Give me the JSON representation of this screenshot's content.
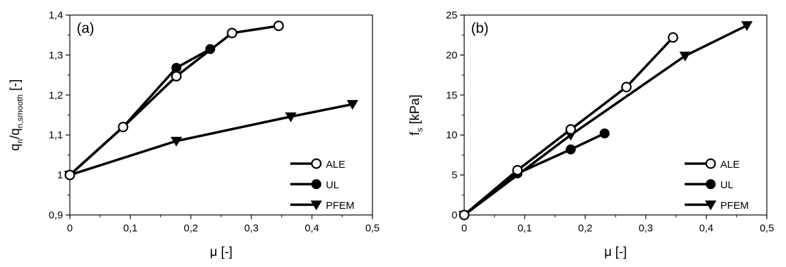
{
  "chart_data": [
    {
      "type": "line",
      "panel_label": "(a)",
      "xlabel": "μ [-]",
      "ylabel": "q_n/q_n,smooth [-]",
      "ylabel_parts": {
        "base": "q",
        "sub1": "n",
        "mid": "/q",
        "sub2": "n,smooth",
        "unit": " [-]"
      },
      "xlim": [
        0,
        0.5
      ],
      "ylim": [
        0.9,
        1.4
      ],
      "x_ticks": [
        0,
        0.1,
        0.2,
        0.3,
        0.4,
        0.5
      ],
      "x_tick_labels": [
        "0",
        "0,1",
        "0,2",
        "0,3",
        "0,4",
        "0,5"
      ],
      "y_ticks": [
        0.9,
        1.0,
        1.1,
        1.2,
        1.3,
        1.4
      ],
      "y_tick_labels": [
        "0,9",
        "1",
        "1,1",
        "1,2",
        "1,3",
        "1,4"
      ],
      "legend_position": "bottom-right",
      "grid": false,
      "series": [
        {
          "name": "ALE",
          "marker": "circle-open",
          "x": [
            0,
            0.088,
            0.176,
            0.268,
            0.345
          ],
          "y": [
            1.0,
            1.12,
            1.247,
            1.355,
            1.373
          ]
        },
        {
          "name": "UL",
          "marker": "circle-filled",
          "x": [
            0,
            0.088,
            0.176,
            0.232
          ],
          "y": [
            1.0,
            1.12,
            1.268,
            1.315
          ]
        },
        {
          "name": "PFEM",
          "marker": "triangle-down",
          "x": [
            0,
            0.176,
            0.365,
            0.467
          ],
          "y": [
            1.0,
            1.085,
            1.146,
            1.177
          ]
        }
      ]
    },
    {
      "type": "line",
      "panel_label": "(b)",
      "xlabel": "μ [-]",
      "ylabel": "f_s [kPa]",
      "ylabel_parts": {
        "base": "f",
        "sub1": "s",
        "unit": " [kPa]"
      },
      "xlim": [
        0,
        0.5
      ],
      "ylim": [
        0,
        25
      ],
      "x_ticks": [
        0,
        0.1,
        0.2,
        0.3,
        0.4,
        0.5
      ],
      "x_tick_labels": [
        "0",
        "0,1",
        "0,2",
        "0,3",
        "0,4",
        "0,5"
      ],
      "y_ticks": [
        0,
        5,
        10,
        15,
        20,
        25
      ],
      "y_tick_labels": [
        "0",
        "5",
        "10",
        "15",
        "20",
        "25"
      ],
      "legend_position": "bottom-right",
      "grid": false,
      "series": [
        {
          "name": "ALE",
          "marker": "circle-open",
          "x": [
            0,
            0.088,
            0.176,
            0.268,
            0.345
          ],
          "y": [
            0,
            5.6,
            10.7,
            16.0,
            22.2
          ]
        },
        {
          "name": "UL",
          "marker": "circle-filled",
          "x": [
            0,
            0.088,
            0.176,
            0.232
          ],
          "y": [
            0,
            5.2,
            8.2,
            10.2
          ]
        },
        {
          "name": "PFEM",
          "marker": "triangle-down",
          "x": [
            0,
            0.176,
            0.365,
            0.467
          ],
          "y": [
            0,
            10.0,
            19.9,
            23.7
          ]
        }
      ]
    }
  ]
}
